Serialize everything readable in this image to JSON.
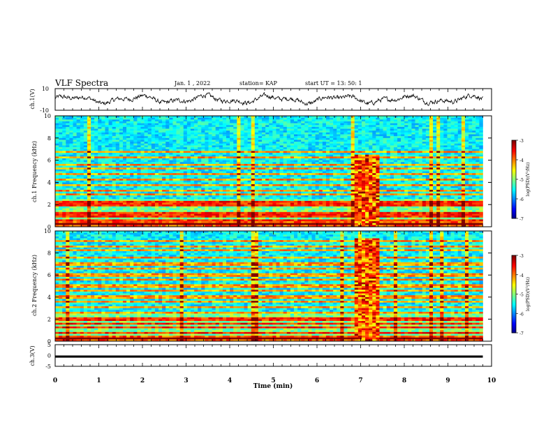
{
  "header": {
    "title": "VLF Spectra",
    "date": "Jan. 1 , 2022",
    "station": "station= KAP",
    "start_ut": "start UT = 13: 50: 1"
  },
  "chart_data": [
    {
      "type": "line",
      "name": "ch1-waveform",
      "ylabel": "ch.1(V)",
      "ylim": [
        -10,
        10
      ],
      "yticks": [
        "10",
        "-10"
      ],
      "xlim": [
        0,
        10
      ],
      "x_range_data": [
        0,
        9.8
      ],
      "note_values": "waveform oscillating roughly between -5 and 5 V"
    },
    {
      "type": "heatmap",
      "name": "ch1-spectrogram",
      "ylabel": "ch.1 Frequency (kHz)",
      "ylim": [
        0,
        10
      ],
      "yticks": [
        "0",
        "2",
        "4",
        "6",
        "8",
        "10"
      ],
      "xlim": [
        0,
        10
      ],
      "x_range_data": [
        0,
        9.8
      ],
      "colorbar": {
        "label": "log(PSD)(V²/Hz)",
        "range": [
          -7,
          -3
        ],
        "ticks": [
          "-3",
          "-4",
          "-5",
          "-6",
          "-7"
        ]
      },
      "burst": {
        "t_start": 6.85,
        "t_end": 7.4,
        "f_max": 6.5
      },
      "lines_khz": [
        0.2,
        0.6,
        1.0,
        1.3,
        2.0,
        2.3,
        2.9,
        3.3,
        3.8,
        4.2,
        4.8,
        5.3,
        5.6,
        6.3,
        6.7
      ]
    },
    {
      "type": "heatmap",
      "name": "ch2-spectrogram",
      "ylabel": "ch.2 Frequency (kHz)",
      "ylim": [
        0,
        10
      ],
      "yticks": [
        "0",
        "2",
        "4",
        "6",
        "8",
        "10"
      ],
      "xlim": [
        0,
        10
      ],
      "x_range_data": [
        0,
        9.8
      ],
      "colorbar": {
        "label": "log(PSD)(V²/Hz)",
        "range": [
          -7,
          -3
        ],
        "ticks": [
          "-3",
          "-4",
          "-5",
          "-6",
          "-7"
        ]
      },
      "burst": {
        "t_start": 6.85,
        "t_end": 7.4,
        "f_max": 9.3
      },
      "lines_khz": [
        0.3,
        0.7,
        1.2,
        1.6,
        2.0,
        2.6,
        3.1,
        3.6,
        4.0,
        4.6,
        5.0,
        5.6,
        6.0,
        6.6,
        7.0,
        7.6,
        8.2,
        8.6,
        9.1
      ]
    },
    {
      "type": "line",
      "name": "ch3-waveform",
      "ylabel": "ch.3(V)",
      "ylim": [
        -5,
        5
      ],
      "yticks": [
        "5",
        "0",
        "-5"
      ],
      "xlim": [
        0,
        10
      ],
      "xlabel": "Time (min)",
      "xticks": [
        "0",
        "1",
        "2",
        "3",
        "4",
        "5",
        "6",
        "7",
        "8",
        "9",
        "10"
      ],
      "x_range_data": [
        0,
        9.8
      ],
      "band": [
        -1.0,
        0.0
      ]
    }
  ]
}
